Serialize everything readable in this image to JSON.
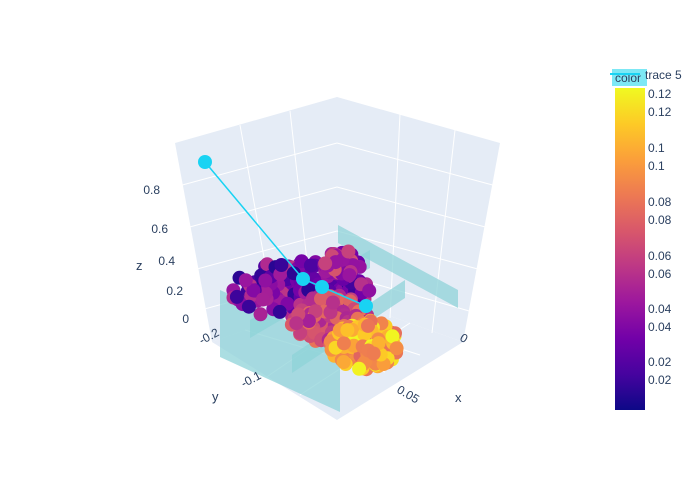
{
  "chart_data": {
    "type": "scatter3d",
    "title": "",
    "axes": {
      "x": {
        "label": "x",
        "ticks": [
          "0",
          "0.05"
        ]
      },
      "y": {
        "label": "y",
        "ticks": [
          "-0.2",
          "-0.1"
        ]
      },
      "z": {
        "label": "z",
        "ticks": [
          "0",
          "0.2",
          "0.4",
          "0.6",
          "0.8"
        ]
      }
    },
    "colorbar": {
      "title": "color",
      "range": [
        0.01,
        0.13
      ],
      "ticks": [
        "0.12",
        "0.1",
        "0.08",
        "0.06",
        "0.04",
        "0.02"
      ],
      "colorscale": [
        "#0d0887",
        "#46039f",
        "#7201a8",
        "#9c179e",
        "#bd3786",
        "#d8576b",
        "#ed7953",
        "#fb9f3a",
        "#fdca26",
        "#f0f921"
      ]
    },
    "legend": {
      "entries": [
        "trace 5"
      ],
      "position": "top-right"
    },
    "series": [
      {
        "name": "trace 5",
        "mode": "lines+markers",
        "color": "#19d3f3",
        "points": [
          [
            0.055,
            -0.19,
            0.93
          ],
          [
            0.022,
            -0.18,
            0.22
          ],
          [
            0.035,
            -0.16,
            0.2
          ],
          [
            0.048,
            -0.12,
            0.16
          ]
        ]
      }
    ],
    "planes_color": "#8fd3d8"
  }
}
